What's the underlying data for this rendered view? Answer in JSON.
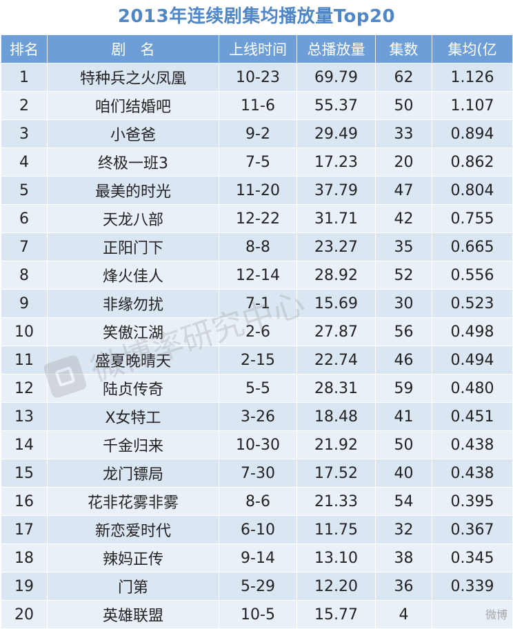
{
  "chart_data": {
    "type": "table",
    "title": "2013年连续剧集均播放量Top20",
    "columns": [
      "排名",
      "剧　名",
      "上线时间",
      "总播放量",
      "集数",
      "集均(亿"
    ],
    "rows": [
      [
        "1",
        "特种兵之火凤凰",
        "10-23",
        "69.79",
        "62",
        "1.126"
      ],
      [
        "2",
        "咱们结婚吧",
        "11-6",
        "55.37",
        "50",
        "1.107"
      ],
      [
        "3",
        "小爸爸",
        "9-2",
        "29.49",
        "33",
        "0.894"
      ],
      [
        "4",
        "终极一班3",
        "7-5",
        "17.23",
        "20",
        "0.862"
      ],
      [
        "5",
        "最美的时光",
        "11-20",
        "37.79",
        "47",
        "0.804"
      ],
      [
        "6",
        "天龙八部",
        "12-22",
        "31.71",
        "42",
        "0.755"
      ],
      [
        "7",
        "正阳门下",
        "8-8",
        "23.27",
        "35",
        "0.665"
      ],
      [
        "8",
        "烽火佳人",
        "12-14",
        "28.92",
        "52",
        "0.556"
      ],
      [
        "9",
        "非缘勿扰",
        "7-1",
        "15.69",
        "30",
        "0.523"
      ],
      [
        "10",
        "笑傲江湖",
        "2-6",
        "27.87",
        "56",
        "0.498"
      ],
      [
        "11",
        "盛夏晚晴天",
        "2-15",
        "22.74",
        "46",
        "0.494"
      ],
      [
        "12",
        "陆贞传奇",
        "5-5",
        "28.31",
        "59",
        "0.480"
      ],
      [
        "13",
        "X女特工",
        "3-26",
        "18.48",
        "41",
        "0.451"
      ],
      [
        "14",
        "千金归来",
        "10-30",
        "21.92",
        "50",
        "0.438"
      ],
      [
        "15",
        "龙门镖局",
        "7-30",
        "17.52",
        "40",
        "0.438"
      ],
      [
        "16",
        "花非花雾非雾",
        "8-6",
        "21.33",
        "54",
        "0.395"
      ],
      [
        "17",
        "新恋爱时代",
        "6-10",
        "11.75",
        "32",
        "0.367"
      ],
      [
        "18",
        "辣妈正传",
        "9-14",
        "13.10",
        "38",
        "0.345"
      ],
      [
        "19",
        "门第",
        "5-29",
        "12.20",
        "36",
        "0.339"
      ],
      [
        "20",
        "英雄联盟",
        "10-5",
        "15.77",
        "4",
        ""
      ]
    ]
  },
  "watermark": {
    "text": "微博率研究中心"
  },
  "corner_mark": "微博",
  "colors": {
    "title": "#4f86c6",
    "header_bg": "#6d9ed8",
    "row_odd": "#dbe6f3",
    "row_even": "#e9f0f8",
    "highlight": "#3a72b8"
  }
}
